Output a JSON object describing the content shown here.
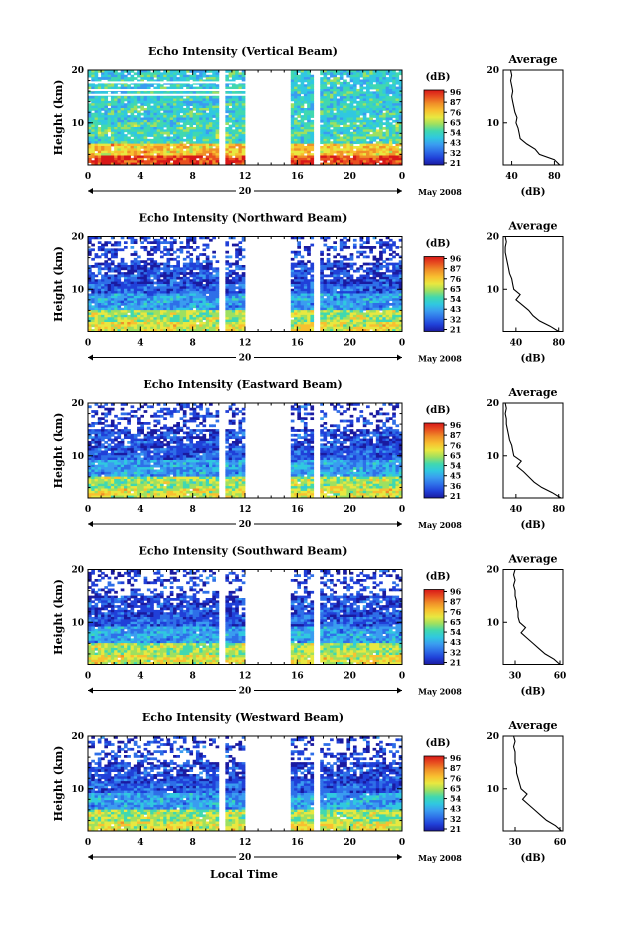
{
  "colorbar_colors": [
    "#1a1aa0",
    "#2040d8",
    "#2e6fe8",
    "#3a9cf0",
    "#30c8e0",
    "#40d8b0",
    "#9ee060",
    "#e8e840",
    "#f8c030",
    "#f09028",
    "#e85020",
    "#d81818"
  ],
  "no_data_color": "#ffffff",
  "x_axis_title": "Local Time",
  "chart_data": [
    {
      "type": "heatmap",
      "title": "Echo Intensity (Vertical Beam)",
      "ylabel": "Height (km)",
      "xlabel": "Local Time",
      "x_ticks": [
        "0",
        "4",
        "8",
        "12",
        "16",
        "20",
        "0"
      ],
      "x_range_hours": [
        0,
        24
      ],
      "y_ticks": [
        "20",
        "10"
      ],
      "ylim_km": [
        2,
        20
      ],
      "date_label": "20",
      "month_label": "May 2008",
      "colorbar": {
        "unit": "(dB)",
        "ticks": [
          "96",
          "87",
          "76",
          "65",
          "54",
          "43",
          "32",
          "21"
        ]
      },
      "data_gaps_hours": [
        [
          10.0,
          10.4
        ],
        [
          12.0,
          15.5
        ],
        [
          17.3,
          17.7
        ]
      ],
      "average_profile": {
        "title": "Average",
        "xlabel": "(dB)",
        "x_ticks": [
          "40",
          "80"
        ],
        "xlim": [
          32,
          88
        ],
        "y_ticks": [
          "20",
          "10"
        ],
        "heights_km": [
          2,
          3,
          4,
          5,
          6,
          7,
          8,
          9,
          10,
          11,
          12,
          13,
          14,
          15,
          16,
          17,
          18,
          19,
          20
        ],
        "values_db": [
          85,
          80,
          66,
          62,
          54,
          48,
          47,
          46,
          44,
          45,
          43,
          42,
          41,
          40,
          41,
          40,
          39,
          40,
          39
        ]
      }
    },
    {
      "type": "heatmap",
      "title": "Echo Intensity (Northward Beam)",
      "ylabel": "Height (km)",
      "xlabel": "Local Time",
      "x_ticks": [
        "0",
        "4",
        "8",
        "12",
        "16",
        "20",
        "0"
      ],
      "x_range_hours": [
        0,
        24
      ],
      "y_ticks": [
        "20",
        "10"
      ],
      "ylim_km": [
        2,
        20
      ],
      "date_label": "20",
      "month_label": "May 2008",
      "colorbar": {
        "unit": "(dB)",
        "ticks": [
          "96",
          "87",
          "76",
          "65",
          "54",
          "43",
          "32",
          "21"
        ]
      },
      "data_gaps_hours": [
        [
          10.0,
          10.4
        ],
        [
          12.0,
          15.5
        ],
        [
          17.3,
          17.7
        ]
      ],
      "average_profile": {
        "title": "Average",
        "xlabel": "(dB)",
        "x_ticks": [
          "40",
          "80"
        ],
        "xlim": [
          28,
          84
        ],
        "y_ticks": [
          "20",
          "10"
        ],
        "heights_km": [
          2,
          3,
          4,
          5,
          6,
          7,
          8,
          9,
          10,
          11,
          12,
          13,
          14,
          15,
          16,
          17,
          18,
          19,
          20
        ],
        "values_db": [
          80,
          72,
          62,
          56,
          52,
          46,
          40,
          44,
          38,
          37,
          36,
          34,
          33,
          32,
          31,
          30,
          30,
          31,
          30
        ]
      }
    },
    {
      "type": "heatmap",
      "title": "Echo Intensity (Eastward Beam)",
      "ylabel": "Height (km)",
      "xlabel": "Local Time",
      "x_ticks": [
        "0",
        "4",
        "8",
        "12",
        "16",
        "20",
        "0"
      ],
      "x_range_hours": [
        0,
        24
      ],
      "y_ticks": [
        "20",
        "10"
      ],
      "ylim_km": [
        2,
        20
      ],
      "date_label": "20",
      "month_label": "May 2008",
      "colorbar": {
        "unit": "(dB)",
        "ticks": [
          "96",
          "87",
          "76",
          "65",
          "54",
          "45",
          "36",
          "21"
        ]
      },
      "data_gaps_hours": [
        [
          10.0,
          10.4
        ],
        [
          12.0,
          15.5
        ],
        [
          17.3,
          17.7
        ]
      ],
      "average_profile": {
        "title": "Average",
        "xlabel": "(dB)",
        "x_ticks": [
          "40",
          "80"
        ],
        "xlim": [
          28,
          84
        ],
        "y_ticks": [
          "20",
          "10"
        ],
        "heights_km": [
          2,
          3,
          4,
          5,
          6,
          7,
          8,
          9,
          10,
          11,
          12,
          13,
          14,
          15,
          16,
          17,
          18,
          19,
          20
        ],
        "values_db": [
          82,
          74,
          64,
          57,
          52,
          47,
          41,
          45,
          38,
          37,
          36,
          34,
          33,
          32,
          31,
          31,
          30,
          31,
          30
        ]
      }
    },
    {
      "type": "heatmap",
      "title": "Echo Intensity (Southward Beam)",
      "ylabel": "Height (km)",
      "xlabel": "Local Time",
      "x_ticks": [
        "0",
        "4",
        "8",
        "12",
        "16",
        "20",
        "0"
      ],
      "x_range_hours": [
        0,
        24
      ],
      "y_ticks": [
        "20",
        "10"
      ],
      "ylim_km": [
        2,
        20
      ],
      "date_label": "20",
      "month_label": "May 2008",
      "colorbar": {
        "unit": "(dB)",
        "ticks": [
          "96",
          "87",
          "76",
          "65",
          "54",
          "43",
          "32",
          "21"
        ]
      },
      "data_gaps_hours": [
        [
          10.0,
          10.4
        ],
        [
          12.0,
          15.5
        ],
        [
          17.3,
          17.7
        ]
      ],
      "average_profile": {
        "title": "Average",
        "xlabel": "(dB)",
        "x_ticks": [
          "30",
          "60"
        ],
        "xlim": [
          22,
          62
        ],
        "y_ticks": [
          "20",
          "10"
        ],
        "heights_km": [
          2,
          3,
          4,
          5,
          6,
          7,
          8,
          9,
          10,
          11,
          12,
          13,
          14,
          15,
          16,
          17,
          18,
          19,
          20
        ],
        "values_db": [
          60,
          56,
          50,
          46,
          42,
          38,
          34,
          37,
          33,
          32,
          32,
          31,
          31,
          30,
          30,
          29,
          30,
          29,
          30
        ]
      }
    },
    {
      "type": "heatmap",
      "title": "Echo Intensity (Westward Beam)",
      "ylabel": "Height (km)",
      "xlabel": "Local Time",
      "x_ticks": [
        "0",
        "4",
        "8",
        "12",
        "16",
        "20",
        "0"
      ],
      "x_range_hours": [
        0,
        24
      ],
      "y_ticks": [
        "20",
        "10"
      ],
      "ylim_km": [
        2,
        20
      ],
      "date_label": "20",
      "month_label": "May 2008",
      "colorbar": {
        "unit": "(dB)",
        "ticks": [
          "96",
          "87",
          "76",
          "65",
          "54",
          "43",
          "32",
          "21"
        ]
      },
      "data_gaps_hours": [
        [
          10.0,
          10.4
        ],
        [
          12.0,
          15.5
        ],
        [
          17.3,
          17.7
        ]
      ],
      "average_profile": {
        "title": "Average",
        "xlabel": "(dB)",
        "x_ticks": [
          "30",
          "60"
        ],
        "xlim": [
          22,
          62
        ],
        "y_ticks": [
          "20",
          "10"
        ],
        "heights_km": [
          2,
          3,
          4,
          5,
          6,
          7,
          8,
          9,
          10,
          11,
          12,
          13,
          14,
          15,
          16,
          17,
          18,
          19,
          20
        ],
        "values_db": [
          61,
          57,
          51,
          47,
          43,
          39,
          35,
          38,
          34,
          33,
          32,
          31,
          31,
          30,
          30,
          30,
          29,
          30,
          29
        ]
      }
    }
  ]
}
